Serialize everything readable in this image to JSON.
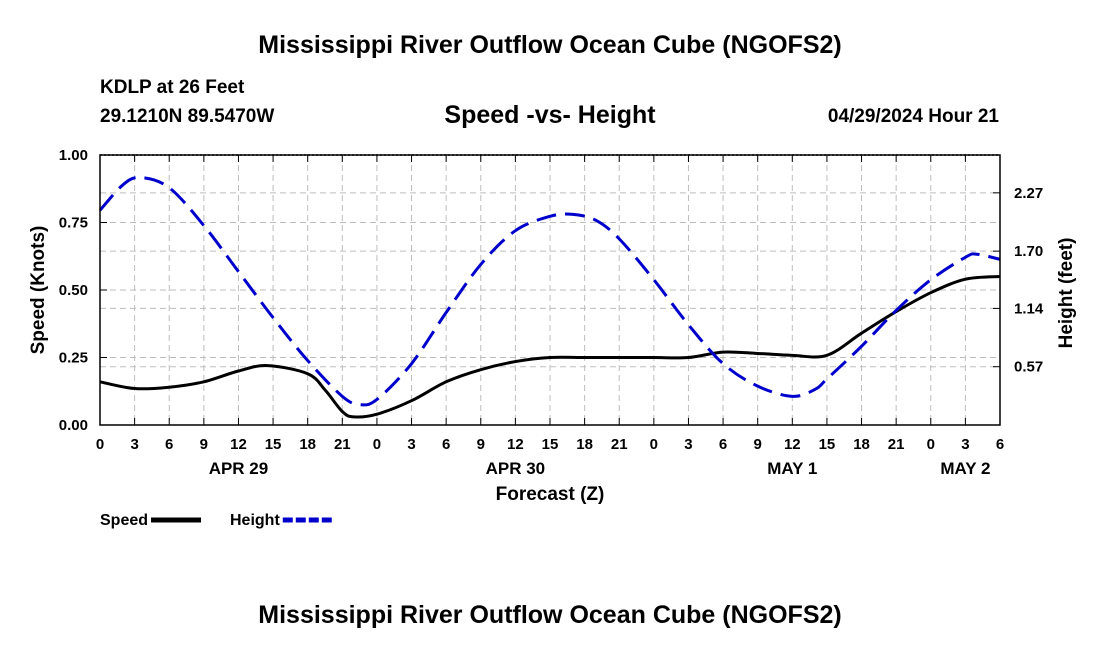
{
  "chart_data": {
    "type": "line",
    "title": "Mississippi River Outflow Ocean Cube (NGOFS2)",
    "station": "KDLP at 26 Feet",
    "coords": "29.1210N  89.5470W",
    "subtitle": "Speed -vs- Height",
    "timestamp": "04/29/2024 Hour 21",
    "xlabel": "Forecast (Z)",
    "ylabel_left": "Speed (Knots)",
    "ylabel_right": "Height (feet)",
    "x_range": [
      0,
      78
    ],
    "x_ticks": [
      0,
      3,
      6,
      9,
      12,
      15,
      18,
      21,
      24,
      27,
      30,
      33,
      36,
      39,
      42,
      45,
      48,
      51,
      54,
      57,
      60,
      63,
      66,
      69,
      72,
      75,
      78
    ],
    "x_tick_labels": [
      "0",
      "3",
      "6",
      "9",
      "12",
      "15",
      "18",
      "21",
      "0",
      "3",
      "6",
      "9",
      "12",
      "15",
      "18",
      "21",
      "0",
      "3",
      "6",
      "9",
      "12",
      "15",
      "18",
      "21",
      "0",
      "3",
      "6"
    ],
    "date_labels": [
      {
        "x": 12,
        "label": "APR 29"
      },
      {
        "x": 36,
        "label": "APR 30"
      },
      {
        "x": 60,
        "label": "MAY 1"
      },
      {
        "x": 75,
        "label": "MAY 2"
      }
    ],
    "y_left_range": [
      0,
      1
    ],
    "y_left_ticks": [
      0,
      0.25,
      0.5,
      0.75,
      1.0
    ],
    "y_left_tick_labels": [
      "0.00",
      "0.25",
      "0.50",
      "0.75",
      "1.00"
    ],
    "y_right_range": [
      0,
      2.64
    ],
    "y_right_ticks": [
      0.57,
      1.14,
      1.7,
      2.27
    ],
    "y_right_tick_labels": [
      "0.57",
      "1.14",
      "1.70",
      "2.27"
    ],
    "grid": true,
    "series": [
      {
        "name": "Speed",
        "axis": "left",
        "color": "#000000",
        "style": "solid",
        "x": [
          0,
          3,
          6,
          9,
          12,
          14.5,
          18,
          19.5,
          21,
          22,
          24,
          27,
          30,
          33,
          36,
          39,
          42,
          45,
          48,
          51,
          54,
          57,
          60,
          63,
          66,
          69,
          72,
          75,
          78
        ],
        "values": [
          0.16,
          0.135,
          0.14,
          0.16,
          0.2,
          0.22,
          0.19,
          0.13,
          0.05,
          0.03,
          0.04,
          0.09,
          0.16,
          0.205,
          0.235,
          0.25,
          0.25,
          0.25,
          0.25,
          0.25,
          0.27,
          0.265,
          0.258,
          0.258,
          0.34,
          0.42,
          0.49,
          0.54,
          0.55
        ]
      },
      {
        "name": "Height",
        "axis": "right",
        "color": "#0000cc",
        "style": "dashed",
        "x": [
          0,
          2,
          3.5,
          6,
          9,
          12,
          15,
          18,
          21,
          22.5,
          24,
          27,
          30,
          33,
          36,
          39,
          41,
          43,
          45,
          48,
          51,
          54,
          57,
          60,
          62,
          63,
          66,
          69,
          72,
          75,
          76,
          78
        ],
        "values": [
          2.1,
          2.35,
          2.42,
          2.32,
          1.95,
          1.5,
          1.05,
          0.63,
          0.28,
          0.2,
          0.25,
          0.6,
          1.1,
          1.57,
          1.9,
          2.04,
          2.06,
          2.0,
          1.82,
          1.42,
          0.98,
          0.6,
          0.38,
          0.28,
          0.35,
          0.45,
          0.77,
          1.12,
          1.42,
          1.64,
          1.67,
          1.62
        ]
      }
    ],
    "legend": [
      {
        "label": "Speed",
        "color": "#000000",
        "style": "solid"
      },
      {
        "label": "Height",
        "color": "#0000cc",
        "style": "dashed"
      }
    ],
    "legend_position": "bottom-left"
  },
  "footer_title": "Mississippi River Outflow Ocean Cube (NGOFS2)"
}
